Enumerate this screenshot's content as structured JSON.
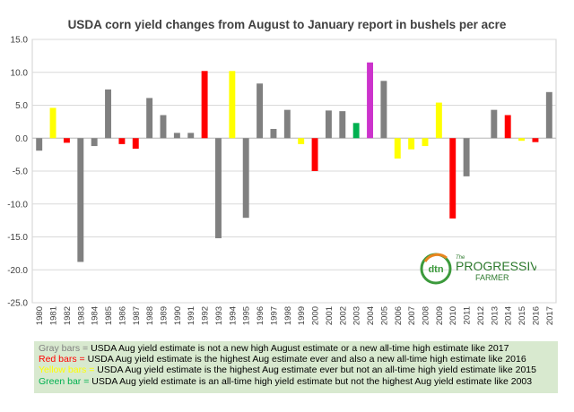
{
  "chart_data": {
    "type": "bar",
    "title": "USDA  corn yield changes from August to January report in bushels per acre",
    "xlabel": "",
    "ylabel": "",
    "ylim": [
      -25.0,
      15.0
    ],
    "yticks": [
      "15.0",
      "10.0",
      "5.0",
      "0.0",
      "-5.0",
      "-10.0",
      "-15.0",
      "-20.0",
      "-25.0"
    ],
    "ytick_values": [
      15,
      10,
      5,
      0,
      -5,
      -10,
      -15,
      -20,
      -25
    ],
    "grid": true,
    "categories": [
      "1980",
      "1981",
      "1982",
      "1983",
      "1984",
      "1985",
      "1986",
      "1987",
      "1988",
      "1989",
      "1990",
      "1991",
      "1992",
      "1993",
      "1994",
      "1995",
      "1996",
      "1997",
      "1998",
      "1999",
      "2000",
      "2001",
      "2002",
      "2003",
      "2004",
      "2005",
      "2006",
      "2007",
      "2008",
      "2009",
      "2010",
      "2011",
      "2012",
      "2013",
      "2014",
      "2015",
      "2016",
      "2017"
    ],
    "values": [
      -1.9,
      4.6,
      -0.7,
      -18.8,
      -1.2,
      7.4,
      -0.9,
      -1.6,
      6.1,
      3.5,
      0.8,
      0.8,
      10.2,
      -15.2,
      10.2,
      -12.1,
      8.3,
      1.4,
      4.3,
      -0.9,
      -5.0,
      4.2,
      4.1,
      2.3,
      11.5,
      8.7,
      -3.1,
      -1.7,
      -1.2,
      5.4,
      -12.2,
      -5.8,
      0.0,
      4.3,
      3.5,
      -0.4,
      -0.6,
      7.0
    ],
    "bar_colors": [
      "#808080",
      "#ffff00",
      "#ff0000",
      "#808080",
      "#808080",
      "#808080",
      "#ff0000",
      "#ff0000",
      "#808080",
      "#808080",
      "#808080",
      "#808080",
      "#ff0000",
      "#808080",
      "#ffff00",
      "#808080",
      "#808080",
      "#808080",
      "#808080",
      "#ffff00",
      "#ff0000",
      "#808080",
      "#808080",
      "#00b050",
      "#cc33cc",
      "#808080",
      "#ffff00",
      "#ffff00",
      "#ffff00",
      "#ffff00",
      "#ff0000",
      "#808080",
      "#808080",
      "#808080",
      "#ff0000",
      "#ffff00",
      "#ff0000",
      "#808080"
    ]
  },
  "legend": {
    "background": "#d8e9cf",
    "items": [
      {
        "key": "Gray bars = ",
        "key_color": "#808080",
        "text": "USDA Aug yield estimate is not a new high August estimate or a new all-time high estimate like  2017"
      },
      {
        "key": "Red bars = ",
        "key_color": "#ff0000",
        "text": "USDA Aug yield estimate is the highest Aug estimate ever and also a new all-time high estimate like  2016"
      },
      {
        "key": "Yellow bars = ",
        "key_color": "#ffff00",
        "text": "USDA Aug yield estimate is the highest Aug estimate ever but not an all-time  high yield estimate like 2015"
      },
      {
        "key": "Green bar = ",
        "key_color": "#00b050",
        "text": "USDA Aug yield estimate is an all-time  high yield estimate but not the highest Aug yield estimate like 2003"
      }
    ]
  },
  "logo": {
    "mark": "dtn",
    "line1": "The",
    "line2": "PROGRESSIVE",
    "line3": "FARMER",
    "colors": {
      "green": "#3c9a3c",
      "orange": "#e8851f",
      "text": "#2e7a2e"
    }
  }
}
